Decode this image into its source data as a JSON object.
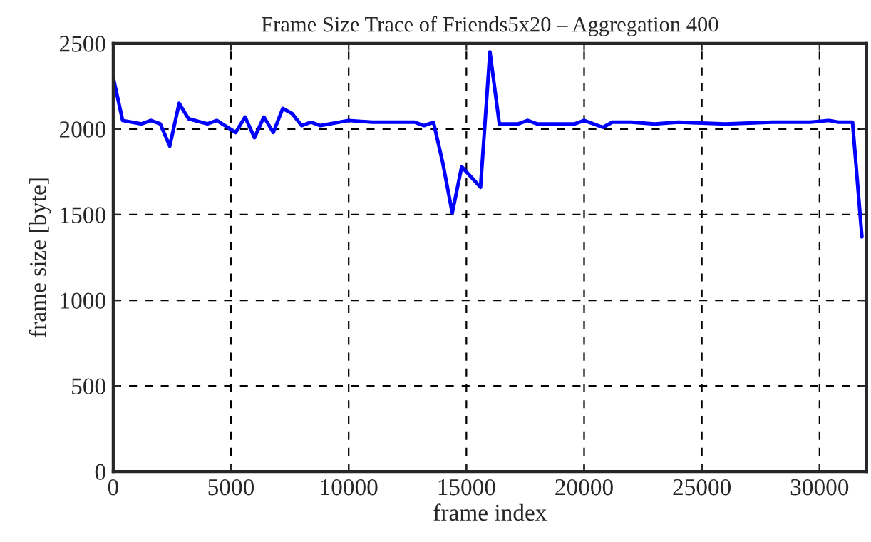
{
  "chart_data": {
    "type": "line",
    "title": "Frame Size Trace of Friends5x20 – Aggregation 400",
    "xlabel": "frame index",
    "ylabel": "frame size [byte]",
    "x": [
      0,
      400,
      1200,
      1600,
      2000,
      2400,
      2800,
      3200,
      4000,
      4400,
      5200,
      5600,
      6000,
      6400,
      6800,
      7200,
      7600,
      8000,
      8400,
      8800,
      10000,
      11000,
      12000,
      12800,
      13200,
      13600,
      14000,
      14400,
      14800,
      15600,
      16000,
      16400,
      17200,
      17600,
      18000,
      19600,
      20000,
      20800,
      21200,
      22000,
      23000,
      24000,
      26000,
      28000,
      29600,
      30400,
      30800,
      31400,
      31800
    ],
    "series": [
      {
        "color": "#0000ff",
        "values": [
          2300,
          2050,
          2030,
          2050,
          2030,
          1900,
          2150,
          2060,
          2030,
          2050,
          1980,
          2070,
          1950,
          2070,
          1980,
          2120,
          2090,
          2020,
          2040,
          2020,
          2050,
          2040,
          2040,
          2040,
          2020,
          2040,
          1800,
          1510,
          1780,
          1660,
          2450,
          2030,
          2030,
          2050,
          2030,
          2030,
          2050,
          2010,
          2040,
          2040,
          2030,
          2040,
          2030,
          2040,
          2040,
          2050,
          2040,
          2040,
          1370
        ]
      }
    ],
    "xlim": [
      0,
      32000
    ],
    "ylim": [
      0,
      2500
    ],
    "xticks": [
      0,
      5000,
      10000,
      15000,
      20000,
      25000,
      30000
    ],
    "yticks": [
      0,
      500,
      1000,
      1500,
      2000,
      2500
    ],
    "grid": true,
    "legend": false,
    "marker": "none",
    "line_style": "solid"
  }
}
